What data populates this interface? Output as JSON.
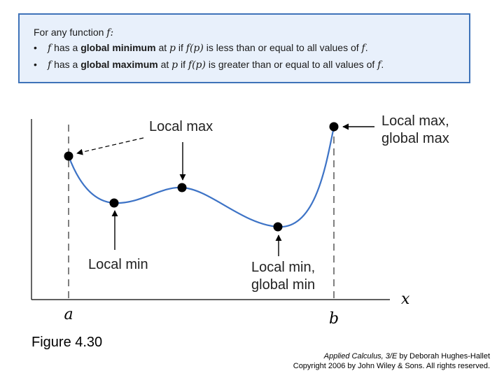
{
  "definition_box": {
    "intro_text": "For any function",
    "intro_var": "f",
    "intro_colon": ":",
    "bullets": [
      {
        "var_f": "f",
        "pre": "has a",
        "term": "global minimum",
        "at": "at",
        "var_p": "p",
        "if": "if",
        "expr": "f(p)",
        "post": "is less than or equal to all values of",
        "end_var": "f",
        "end": "."
      },
      {
        "var_f": "f",
        "pre": "has a",
        "term": "global maximum",
        "at": "at",
        "var_p": "p",
        "if": "if",
        "expr": "f(p)",
        "post": "is greater than or equal to all values of",
        "end_var": "f",
        "end": "."
      }
    ]
  },
  "chart_data": {
    "type": "line",
    "title": "",
    "xlabel": "x",
    "ylabel": "",
    "x_ticks": [
      "a",
      "b"
    ],
    "annotations": [
      {
        "lines": [
          "Local max"
        ],
        "point": "left endpoint a"
      },
      {
        "lines": [
          "Local max"
        ],
        "point": "interior hump"
      },
      {
        "lines": [
          "Local min"
        ],
        "point": "first valley"
      },
      {
        "lines": [
          "Local min,",
          "global min"
        ],
        "point": "second valley"
      },
      {
        "lines": [
          "Local max,",
          "global max"
        ],
        "point": "right endpoint b"
      }
    ],
    "colors": {
      "curve": "#3d73c6",
      "points": "#000000"
    }
  },
  "figure": {
    "title": "Figure 4.30"
  },
  "credit": {
    "book": "Applied Calculus, 3/E",
    "author": " by Deborah Hughes-Hallet",
    "copyright": "Copyright 2006 by John Wiley & Sons.  All rights reserved."
  }
}
